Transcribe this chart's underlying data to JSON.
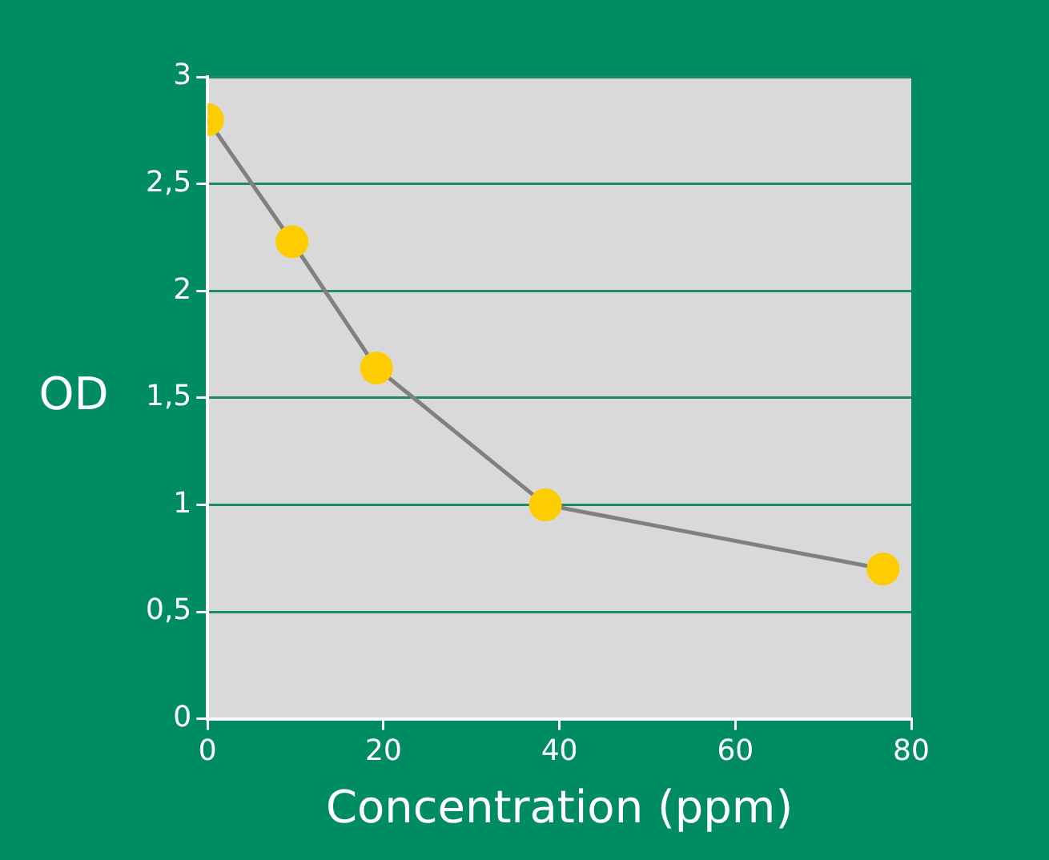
{
  "chart_data": {
    "type": "line",
    "xlabel": "Concentration (ppm)",
    "ylabel": "OD",
    "x": [
      0,
      9.6,
      19.2,
      38.4,
      76.8
    ],
    "series": [
      {
        "color": "#ffcc00",
        "values": [
          2.8,
          2.23,
          1.64,
          1.0,
          0.7
        ]
      }
    ],
    "xlim": [
      0,
      80
    ],
    "xticks": [
      0,
      20,
      40,
      60,
      80
    ],
    "ylim": [
      0,
      3
    ],
    "yticks": [
      0,
      {
        "value": 0.5,
        "label": "0,5"
      },
      1,
      {
        "value": 1.5,
        "label": "1,5"
      },
      2,
      {
        "value": 2.5,
        "label": "2,5"
      },
      3
    ],
    "grid": "y",
    "marker": "circle",
    "line_style": "solid"
  }
}
